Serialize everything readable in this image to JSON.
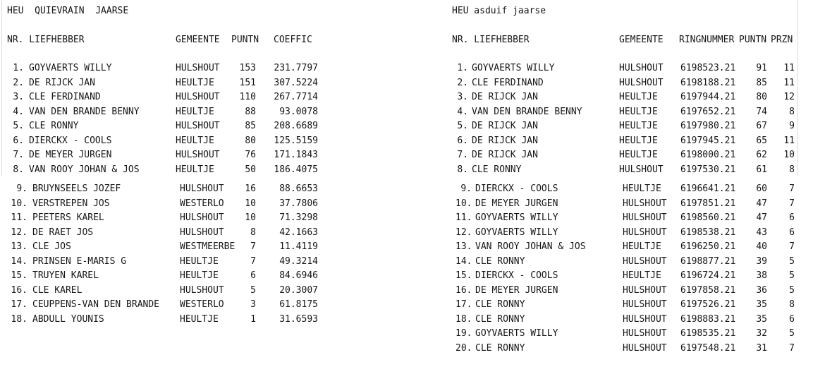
{
  "page": {
    "background": "#ffffff",
    "text_color": "#161616",
    "frame_border_color": "#dcdcdc"
  },
  "left_table": {
    "title": "HEU  QUIEVRAIN  JAARSE",
    "header": {
      "nr_liefhebber": "NR. LIEFHEBBER",
      "gemeente": "GEMEENTE",
      "puntn": "PUNTN",
      "coeffic": "COEFFIC"
    },
    "rows_top": [
      {
        "nr": "1.",
        "liefhebber": "GOYVAERTS WILLY",
        "gemeente": "HULSHOUT",
        "puntn": "153",
        "coeffic": "231.7797"
      },
      {
        "nr": "2.",
        "liefhebber": "DE RIJCK JAN",
        "gemeente": "HEULTJE",
        "puntn": "151",
        "coeffic": "307.5224"
      },
      {
        "nr": "3.",
        "liefhebber": "CLE FERDINAND",
        "gemeente": "HULSHOUT",
        "puntn": "110",
        "coeffic": "267.7714"
      },
      {
        "nr": "4.",
        "liefhebber": "VAN DEN BRANDE BENNY",
        "gemeente": "HEULTJE",
        "puntn": "88",
        "coeffic": "93.0078"
      },
      {
        "nr": "5.",
        "liefhebber": "CLE RONNY",
        "gemeente": "HULSHOUT",
        "puntn": "85",
        "coeffic": "208.6689"
      },
      {
        "nr": "6.",
        "liefhebber": "DIERCKX - COOLS",
        "gemeente": "HEULTJE",
        "puntn": "80",
        "coeffic": "125.5159"
      },
      {
        "nr": "7.",
        "liefhebber": "DE MEYER JURGEN",
        "gemeente": "HULSHOUT",
        "puntn": "76",
        "coeffic": "171.1843"
      },
      {
        "nr": "8.",
        "liefhebber": "VAN ROOY JOHAN & JOS",
        "gemeente": "HEULTJE",
        "puntn": "50",
        "coeffic": "186.4075"
      }
    ],
    "rows_bottom": [
      {
        "nr": "9.",
        "liefhebber": "BRUYNSEELS JOZEF",
        "gemeente": "HULSHOUT",
        "puntn": "16",
        "coeffic": "88.6653"
      },
      {
        "nr": "10.",
        "liefhebber": "VERSTREPEN JOS",
        "gemeente": "WESTERLO",
        "puntn": "10",
        "coeffic": "37.7806"
      },
      {
        "nr": "11.",
        "liefhebber": "PEETERS KAREL",
        "gemeente": "HULSHOUT",
        "puntn": "10",
        "coeffic": "71.3298"
      },
      {
        "nr": "12.",
        "liefhebber": "DE RAET JOS",
        "gemeente": "HULSHOUT",
        "puntn": "8",
        "coeffic": "42.1663"
      },
      {
        "nr": "13.",
        "liefhebber": "CLE JOS",
        "gemeente": "WESTMEERBE",
        "puntn": "7",
        "coeffic": "11.4119"
      },
      {
        "nr": "14.",
        "liefhebber": "PRINSEN E-MARIS G",
        "gemeente": "HEULTJE",
        "puntn": "7",
        "coeffic": "49.3214"
      },
      {
        "nr": "15.",
        "liefhebber": "TRUYEN KAREL",
        "gemeente": "HEULTJE",
        "puntn": "6",
        "coeffic": "84.6946"
      },
      {
        "nr": "16.",
        "liefhebber": "CLE KAREL",
        "gemeente": "HULSHOUT",
        "puntn": "5",
        "coeffic": "20.3007"
      },
      {
        "nr": "17.",
        "liefhebber": "CEUPPENS-VAN DEN BRANDE",
        "gemeente": "WESTERLO",
        "puntn": "3",
        "coeffic": "61.8175"
      },
      {
        "nr": "18.",
        "liefhebber": "ABDULL YOUNIS",
        "gemeente": "HEULTJE",
        "puntn": "1",
        "coeffic": "31.6593"
      }
    ]
  },
  "right_table": {
    "title": "HEU asduif jaarse",
    "header": {
      "nr_liefhebber": "NR. LIEFHEBBER",
      "gemeente": "GEMEENTE",
      "ringnummer": "RINGNUMMER",
      "puntn": "PUNTN",
      "przn": "PRZN"
    },
    "rows_top": [
      {
        "nr": "1.",
        "liefhebber": "GOYVAERTS WILLY",
        "gemeente": "HULSHOUT",
        "ringnummer": "6198523.21",
        "puntn": "91",
        "przn": "11"
      },
      {
        "nr": "2.",
        "liefhebber": "CLE FERDINAND",
        "gemeente": "HULSHOUT",
        "ringnummer": "6198188.21",
        "puntn": "85",
        "przn": "11"
      },
      {
        "nr": "3.",
        "liefhebber": "DE RIJCK JAN",
        "gemeente": "HEULTJE",
        "ringnummer": "6197944.21",
        "puntn": "80",
        "przn": "12"
      },
      {
        "nr": "4.",
        "liefhebber": "VAN DEN BRANDE BENNY",
        "gemeente": "HEULTJE",
        "ringnummer": "6197652.21",
        "puntn": "74",
        "przn": "8"
      },
      {
        "nr": "5.",
        "liefhebber": "DE RIJCK JAN",
        "gemeente": "HEULTJE",
        "ringnummer": "6197980.21",
        "puntn": "67",
        "przn": "9"
      },
      {
        "nr": "6.",
        "liefhebber": "DE RIJCK JAN",
        "gemeente": "HEULTJE",
        "ringnummer": "6197945.21",
        "puntn": "65",
        "przn": "11"
      },
      {
        "nr": "7.",
        "liefhebber": "DE RIJCK JAN",
        "gemeente": "HEULTJE",
        "ringnummer": "6198000.21",
        "puntn": "62",
        "przn": "10"
      },
      {
        "nr": "8.",
        "liefhebber": "CLE RONNY",
        "gemeente": "HULSHOUT",
        "ringnummer": "6197530.21",
        "puntn": "61",
        "przn": "8"
      }
    ],
    "rows_bottom": [
      {
        "nr": "9.",
        "liefhebber": "DIERCKX - COOLS",
        "gemeente": "HEULTJE",
        "ringnummer": "6196641.21",
        "puntn": "60",
        "przn": "7"
      },
      {
        "nr": "10.",
        "liefhebber": "DE MEYER JURGEN",
        "gemeente": "HULSHOUT",
        "ringnummer": "6197851.21",
        "puntn": "47",
        "przn": "7"
      },
      {
        "nr": "11.",
        "liefhebber": "GOYVAERTS WILLY",
        "gemeente": "HULSHOUT",
        "ringnummer": "6198560.21",
        "puntn": "47",
        "przn": "6"
      },
      {
        "nr": "12.",
        "liefhebber": "GOYVAERTS WILLY",
        "gemeente": "HULSHOUT",
        "ringnummer": "6198538.21",
        "puntn": "43",
        "przn": "6"
      },
      {
        "nr": "13.",
        "liefhebber": "VAN ROOY JOHAN & JOS",
        "gemeente": "HEULTJE",
        "ringnummer": "6196250.21",
        "puntn": "40",
        "przn": "7"
      },
      {
        "nr": "14.",
        "liefhebber": "CLE RONNY",
        "gemeente": "HULSHOUT",
        "ringnummer": "6198877.21",
        "puntn": "39",
        "przn": "5"
      },
      {
        "nr": "15.",
        "liefhebber": "DIERCKX - COOLS",
        "gemeente": "HEULTJE",
        "ringnummer": "6196724.21",
        "puntn": "38",
        "przn": "5"
      },
      {
        "nr": "16.",
        "liefhebber": "DE MEYER JURGEN",
        "gemeente": "HULSHOUT",
        "ringnummer": "6197858.21",
        "puntn": "36",
        "przn": "5"
      },
      {
        "nr": "17.",
        "liefhebber": "CLE RONNY",
        "gemeente": "HULSHOUT",
        "ringnummer": "6197526.21",
        "puntn": "35",
        "przn": "8"
      },
      {
        "nr": "18.",
        "liefhebber": "CLE RONNY",
        "gemeente": "HULSHOUT",
        "ringnummer": "6198883.21",
        "puntn": "35",
        "przn": "6"
      },
      {
        "nr": "19.",
        "liefhebber": "GOYVAERTS WILLY",
        "gemeente": "HULSHOUT",
        "ringnummer": "6198535.21",
        "puntn": "32",
        "przn": "5"
      },
      {
        "nr": "20.",
        "liefhebber": "CLE RONNY",
        "gemeente": "HULSHOUT",
        "ringnummer": "6197548.21",
        "puntn": "31",
        "przn": "7"
      }
    ]
  }
}
